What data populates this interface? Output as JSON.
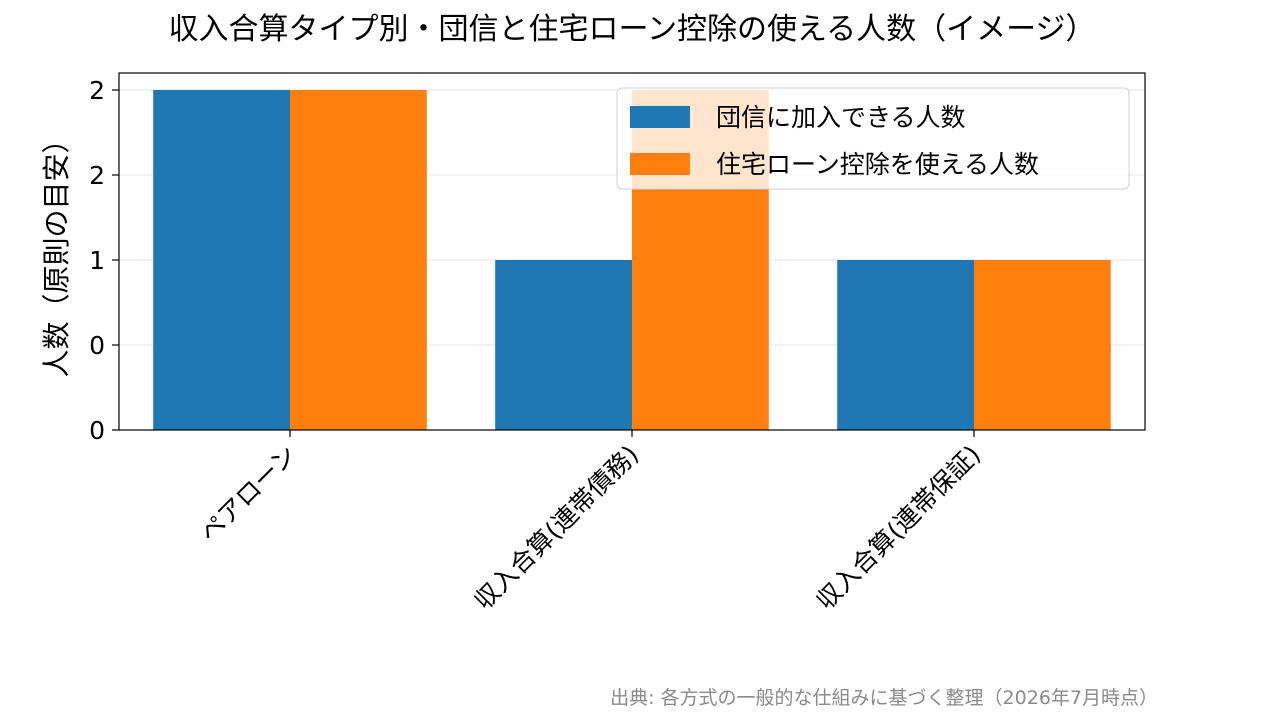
{
  "chart_data": {
    "type": "bar",
    "title": "収入合算タイプ別・団信と住宅ローン控除の使える人数（イメージ）",
    "xlabel": "",
    "ylabel": "人数（原則の目安）",
    "categories": [
      "ペアローン",
      "収入合算(連帯債務)",
      "収入合算(連帯保証)"
    ],
    "series": [
      {
        "name": "団信に加入できる人数",
        "values": [
          2,
          1,
          1
        ],
        "color": "#1f77b4"
      },
      {
        "name": "住宅ローン控除を使える人数",
        "values": [
          2,
          2,
          1
        ],
        "color": "#ff7f0e"
      }
    ],
    "ylim": [
      0,
      2.1
    ],
    "yticks": [
      0,
      0.5,
      1.0,
      1.5,
      2.0
    ],
    "ytick_labels": [
      "0",
      "0",
      "1",
      "2",
      "2"
    ],
    "grid": true,
    "legend_position": "upper right"
  },
  "source_note": "出典: 各方式の一般的な仕組みに基づく整理（2026年7月時点）"
}
